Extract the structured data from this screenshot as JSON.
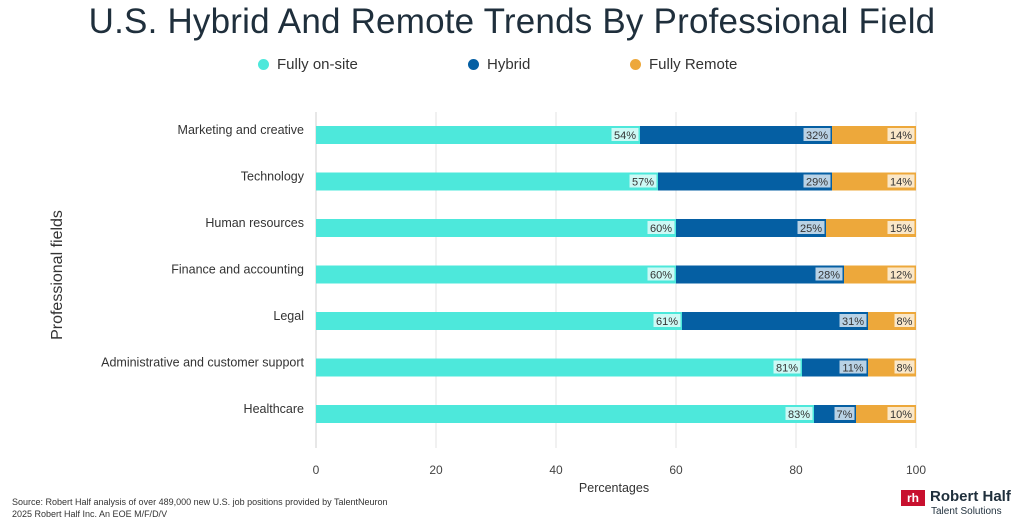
{
  "chart_data": {
    "type": "bar",
    "orientation": "horizontal",
    "stacked": true,
    "title": "U.S. Hybrid And Remote Trends By Professional Field",
    "xlabel": "Percentages",
    "ylabel": "Professional fields",
    "xlim": [
      0,
      100
    ],
    "xticks": [
      0,
      20,
      40,
      60,
      80,
      100
    ],
    "grid": "vertical",
    "legend_position": "top",
    "categories": [
      "Marketing and creative",
      "Technology",
      "Human resources",
      "Finance and accounting",
      "Legal",
      "Administrative and customer support",
      "Healthcare"
    ],
    "series": [
      {
        "name": "Fully on-site",
        "color": "#4de8db",
        "values": [
          54,
          57,
          60,
          60,
          61,
          81,
          83
        ]
      },
      {
        "name": "Hybrid",
        "color": "#055fa3",
        "values": [
          32,
          29,
          25,
          28,
          31,
          11,
          7
        ]
      },
      {
        "name": "Fully Remote",
        "color": "#eda83b",
        "values": [
          14,
          14,
          15,
          12,
          8,
          8,
          10
        ]
      }
    ],
    "value_label_suffix": "%"
  },
  "footer": {
    "source": "Source: Robert Half analysis of over 489,000 new U.S. job positions provided by TalentNeuron",
    "copyright": "2025 Robert Half Inc. An EOE M/F/D/V"
  },
  "logo": {
    "mark": "rh",
    "name": "Robert Half",
    "subtitle": "Talent Solutions"
  }
}
